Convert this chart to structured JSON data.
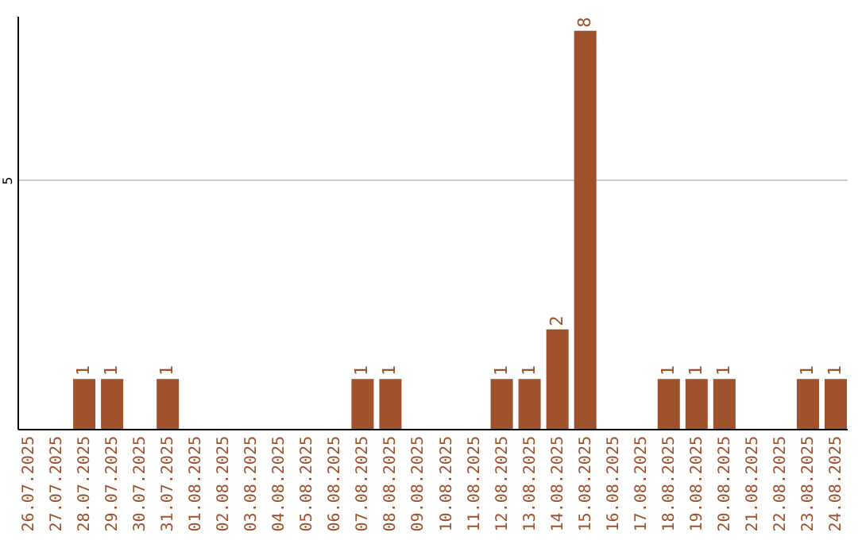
{
  "chart_data": {
    "type": "bar",
    "categories": [
      "26.07.2025",
      "27.07.2025",
      "28.07.2025",
      "29.07.2025",
      "30.07.2025",
      "31.07.2025",
      "01.08.2025",
      "02.08.2025",
      "03.08.2025",
      "04.08.2025",
      "05.08.2025",
      "06.08.2025",
      "07.08.2025",
      "08.08.2025",
      "09.08.2025",
      "10.08.2025",
      "11.08.2025",
      "12.08.2025",
      "13.08.2025",
      "14.08.2025",
      "15.08.2025",
      "16.08.2025",
      "17.08.2025",
      "18.08.2025",
      "19.08.2025",
      "20.08.2025",
      "21.08.2025",
      "22.08.2025",
      "23.08.2025",
      "24.08.2025"
    ],
    "values": [
      0,
      0,
      1,
      1,
      0,
      1,
      0,
      0,
      0,
      0,
      0,
      0,
      1,
      1,
      0,
      0,
      0,
      1,
      1,
      2,
      8,
      0,
      0,
      1,
      1,
      1,
      0,
      0,
      1,
      1
    ],
    "value_labels": [
      null,
      null,
      "1",
      "1",
      null,
      "1",
      null,
      null,
      null,
      null,
      null,
      null,
      "1",
      "1",
      null,
      null,
      null,
      "1",
      "1",
      "2",
      "8",
      null,
      null,
      "1",
      "1",
      "1",
      null,
      null,
      "1",
      "1"
    ],
    "color": "#a0522d",
    "ylim": [
      0,
      8.3
    ],
    "yticks": [
      5
    ],
    "grid": "y"
  }
}
